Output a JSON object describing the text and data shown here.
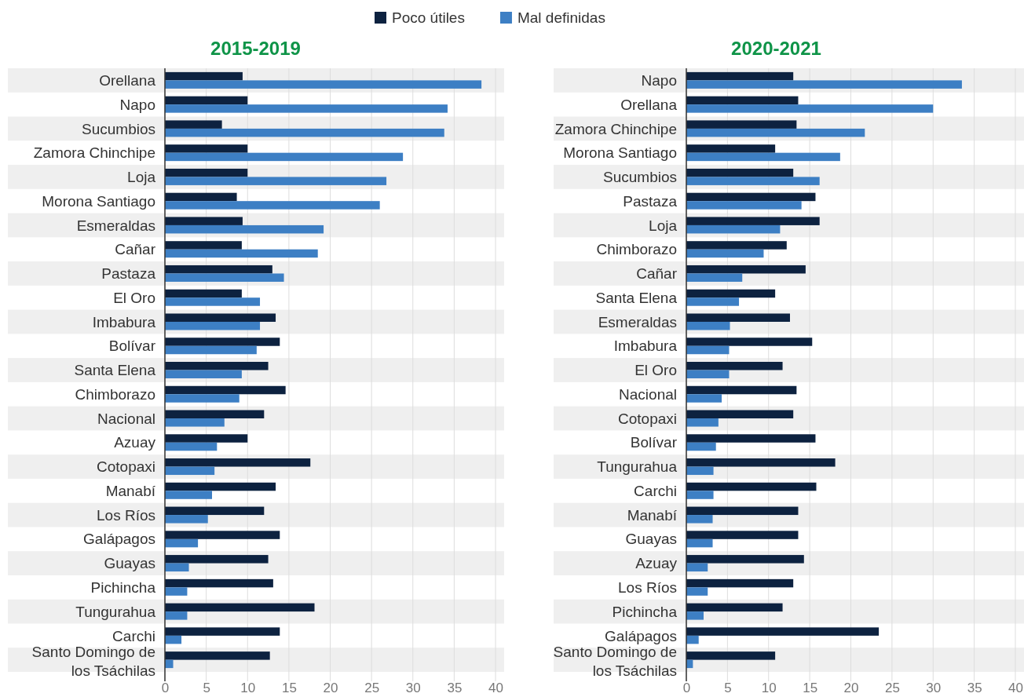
{
  "chart_data": [
    {
      "type": "bar",
      "orientation": "horizontal",
      "title": "2015-2019",
      "legend": "top",
      "grid": "x",
      "xlim": [
        0,
        40
      ],
      "xticks": [
        0,
        5,
        10,
        15,
        20,
        25,
        30,
        35,
        40
      ],
      "categories": [
        "Orellana",
        "Napo",
        "Sucumbios",
        "Zamora Chinchipe",
        "Loja",
        "Morona Santiago",
        "Esmeraldas",
        "Cañar",
        "Pastaza",
        "El Oro",
        "Imbabura",
        "Bolívar",
        "Santa Elena",
        "Chimborazo",
        "Nacional",
        "Azuay",
        "Cotopaxi",
        "Manabí",
        "Los Ríos",
        "Galápagos",
        "Guayas",
        "Pichincha",
        "Tungurahua",
        "Carchi",
        "Santo Domingo de los Tsáchilas"
      ],
      "series": [
        {
          "name": "Poco útiles",
          "color": "#0d2240",
          "values": [
            9.4,
            10.0,
            6.9,
            10.0,
            10.0,
            8.7,
            9.4,
            9.3,
            13.0,
            9.3,
            13.4,
            13.9,
            12.5,
            14.6,
            12.0,
            10.0,
            17.6,
            13.4,
            12.0,
            13.9,
            12.5,
            13.1,
            18.1,
            13.9,
            12.7
          ]
        },
        {
          "name": "Mal definidas",
          "color": "#3d7fc4",
          "values": [
            38.3,
            34.2,
            33.8,
            28.8,
            26.8,
            26.0,
            19.2,
            18.5,
            14.4,
            11.5,
            11.5,
            11.1,
            9.3,
            9.0,
            7.2,
            6.3,
            6.0,
            5.7,
            5.2,
            4.0,
            2.9,
            2.7,
            2.7,
            2.0,
            1.0
          ]
        }
      ]
    },
    {
      "type": "bar",
      "orientation": "horizontal",
      "title": "2020-2021",
      "grid": "x",
      "xlim": [
        0,
        40
      ],
      "xticks": [
        0,
        5,
        10,
        15,
        20,
        25,
        30,
        35,
        40
      ],
      "categories": [
        "Napo",
        "Orellana",
        "Zamora Chinchipe",
        "Morona Santiago",
        "Sucumbios",
        "Pastaza",
        "Loja",
        "Chimborazo",
        "Cañar",
        "Santa Elena",
        "Esmeraldas",
        "Imbabura",
        "El Oro",
        "Nacional",
        "Cotopaxi",
        "Bolívar",
        "Tungurahua",
        "Carchi",
        "Manabí",
        "Guayas",
        "Azuay",
        "Los Ríos",
        "Pichincha",
        "Galápagos",
        "Santo Domingo de los Tsáchilas"
      ],
      "series": [
        {
          "color": "#0d2240",
          "values": [
            13.0,
            13.6,
            13.4,
            10.8,
            13.0,
            15.7,
            16.2,
            12.2,
            14.5,
            10.8,
            12.6,
            15.3,
            11.7,
            13.4,
            13.0,
            15.7,
            18.1,
            15.8,
            13.6,
            13.6,
            14.3,
            13.0,
            11.7,
            23.4,
            10.8
          ]
        },
        {
          "color": "#3d7fc4",
          "values": [
            33.5,
            30.0,
            21.7,
            18.7,
            16.2,
            14.0,
            11.4,
            9.4,
            6.8,
            6.4,
            5.3,
            5.2,
            5.2,
            4.3,
            3.9,
            3.6,
            3.3,
            3.3,
            3.2,
            3.2,
            2.6,
            2.6,
            2.1,
            1.5,
            0.8
          ]
        }
      ]
    }
  ]
}
